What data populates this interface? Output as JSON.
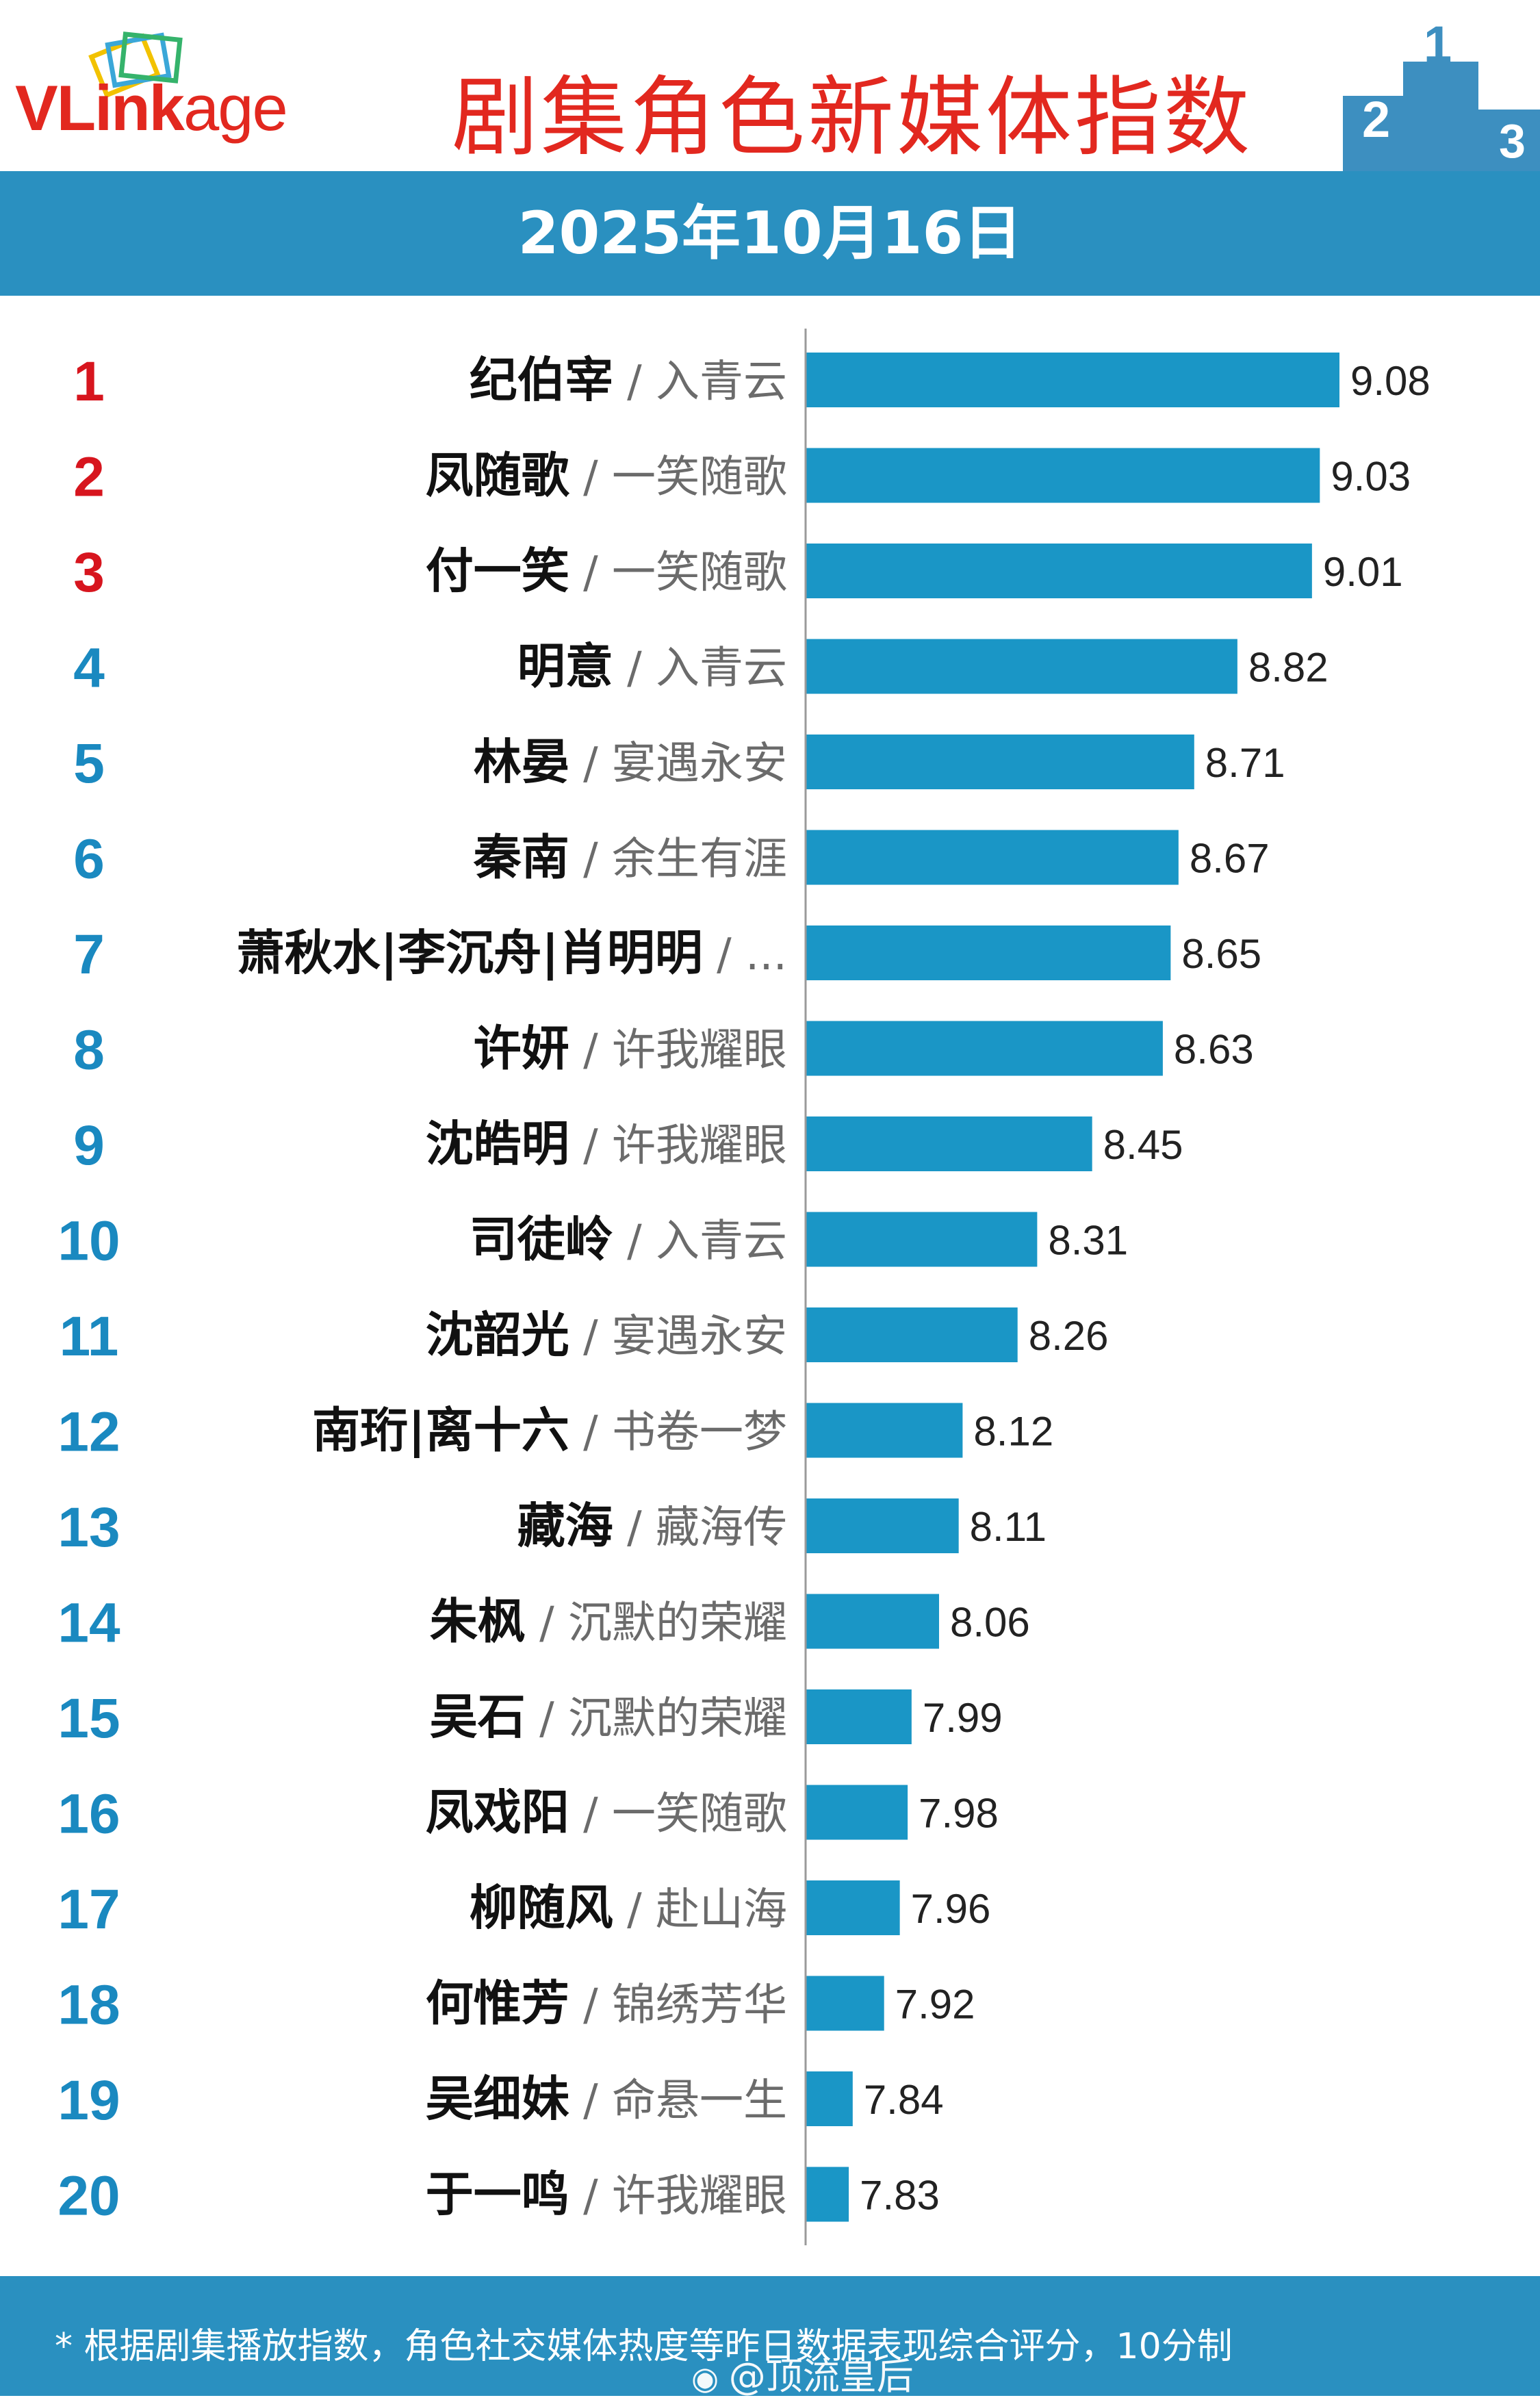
{
  "header": {
    "brand_logo": "VLinkage",
    "title": "剧集角色新媒体指数",
    "podium_digits": [
      "2",
      "1",
      "3"
    ]
  },
  "date_band": {
    "date": "2025年10月16日"
  },
  "footer": {
    "note": "* 根据剧集播放指数，角色社交媒体热度等昨日数据表现综合评分，10分制",
    "watermark": "@顶流皇后"
  },
  "colors": {
    "bar": "#1a96c6",
    "rank_top3": "#d7151e",
    "rank_other": "#1a89c0",
    "band": "#2a90c0",
    "title": "#e2281f"
  },
  "chart_data": {
    "type": "bar",
    "orientation": "horizontal",
    "title": "剧集角色新媒体指数",
    "subtitle": "2025年10月16日",
    "categories": [
      "纪伯宰",
      "凤随歌",
      "付一笑",
      "明意",
      "林晏",
      "秦南",
      "萧秋水|李沉舟|肖明明",
      "许妍",
      "沈皓明",
      "司徒岭",
      "沈韶光",
      "南珩|离十六",
      "藏海",
      "朱枫",
      "吴石",
      "凤戏阳",
      "柳随风",
      "何惟芳",
      "吴细妹",
      "于一鸣"
    ],
    "dramas": [
      "入青云",
      "一笑随歌",
      "一笑随歌",
      "入青云",
      "宴遇永安",
      "余生有涯",
      "...",
      "许我耀眼",
      "许我耀眼",
      "入青云",
      "宴遇永安",
      "书卷一梦",
      "藏海传",
      "沉默的荣耀",
      "沉默的荣耀",
      "一笑随歌",
      "赴山海",
      "锦绣芳华",
      "命悬一生",
      "许我耀眼"
    ],
    "ranks": [
      "1",
      "2",
      "3",
      "4",
      "5",
      "6",
      "7",
      "8",
      "9",
      "10",
      "11",
      "12",
      "13",
      "14",
      "15",
      "16",
      "17",
      "18",
      "19",
      "20"
    ],
    "values": [
      9.08,
      9.03,
      9.01,
      8.82,
      8.71,
      8.67,
      8.65,
      8.63,
      8.45,
      8.31,
      8.26,
      8.12,
      8.11,
      8.06,
      7.99,
      7.98,
      7.96,
      7.92,
      7.84,
      7.83
    ],
    "value_labels": [
      "9.08",
      "9.03",
      "9.01",
      "8.82",
      "8.71",
      "8.67",
      "8.65",
      "8.63",
      "8.45",
      "8.31",
      "8.26",
      "8.12",
      "8.11",
      "8.06",
      "7.99",
      "7.98",
      "7.96",
      "7.92",
      "7.84",
      "7.83"
    ],
    "xlim": [
      7.72,
      9.08
    ],
    "grid": false,
    "legend": "none"
  }
}
